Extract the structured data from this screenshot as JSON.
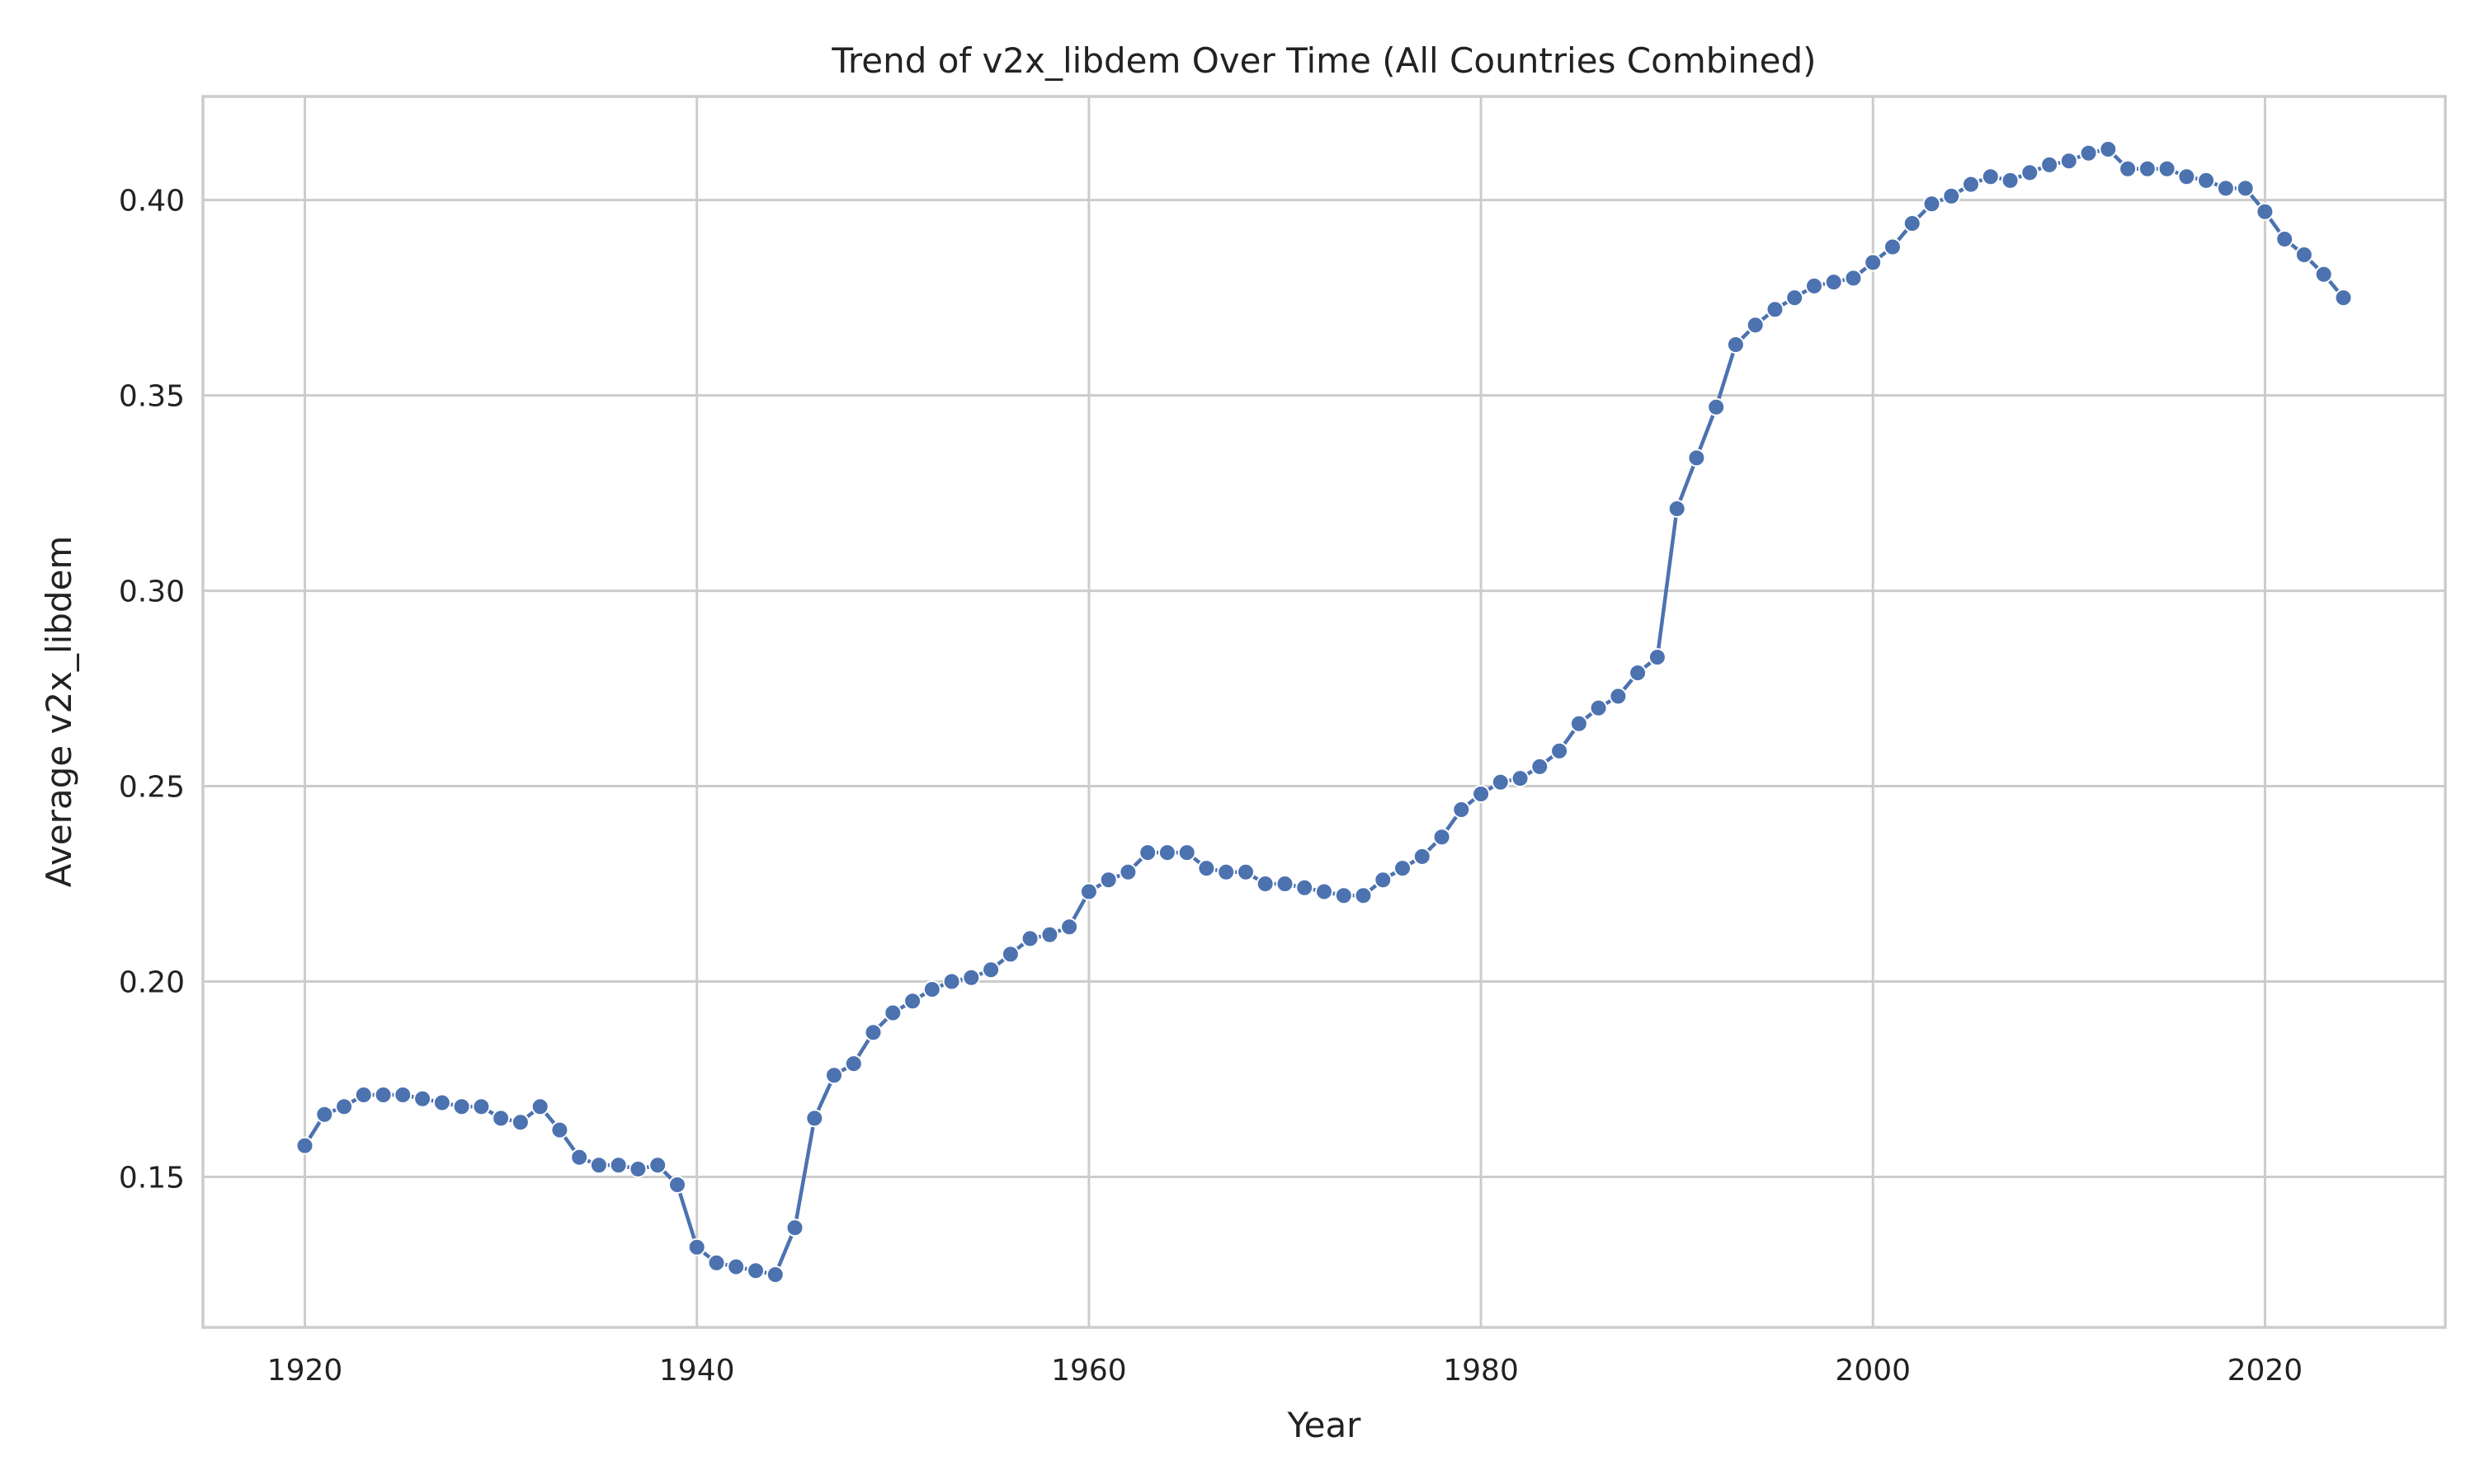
{
  "chart_data": {
    "type": "line",
    "title": "Trend of v2x_libdem Over Time (All Countries Combined)",
    "xlabel": "Year",
    "ylabel": "Average v2x_libdem",
    "xlim": [
      1914.8,
      2029.2
    ],
    "ylim": [
      0.1115,
      0.4265
    ],
    "xticks": [
      1920,
      1940,
      1960,
      1980,
      2000,
      2020
    ],
    "yticks": [
      0.15,
      0.2,
      0.25,
      0.3,
      0.35,
      0.4
    ],
    "xtick_labels": [
      "1920",
      "1940",
      "1960",
      "1980",
      "2000",
      "2020"
    ],
    "ytick_labels": [
      "0.15",
      "0.20",
      "0.25",
      "0.30",
      "0.35",
      "0.40"
    ],
    "grid": true,
    "marker": "circle",
    "color": "#4c72b0",
    "x": [
      1920,
      1921,
      1922,
      1923,
      1924,
      1925,
      1926,
      1927,
      1928,
      1929,
      1930,
      1931,
      1932,
      1933,
      1934,
      1935,
      1936,
      1937,
      1938,
      1939,
      1940,
      1941,
      1942,
      1943,
      1944,
      1945,
      1946,
      1947,
      1948,
      1949,
      1950,
      1951,
      1952,
      1953,
      1954,
      1955,
      1956,
      1957,
      1958,
      1959,
      1960,
      1961,
      1962,
      1963,
      1964,
      1965,
      1966,
      1967,
      1968,
      1969,
      1970,
      1971,
      1972,
      1973,
      1974,
      1975,
      1976,
      1977,
      1978,
      1979,
      1980,
      1981,
      1982,
      1983,
      1984,
      1985,
      1986,
      1987,
      1988,
      1989,
      1990,
      1991,
      1992,
      1993,
      1994,
      1995,
      1996,
      1997,
      1998,
      1999,
      2000,
      2001,
      2002,
      2003,
      2004,
      2005,
      2006,
      2007,
      2008,
      2009,
      2010,
      2011,
      2012,
      2013,
      2014,
      2015,
      2016,
      2017,
      2018,
      2019,
      2020,
      2021,
      2022,
      2023,
      2024
    ],
    "y": [
      0.158,
      0.166,
      0.168,
      0.171,
      0.171,
      0.171,
      0.17,
      0.169,
      0.168,
      0.168,
      0.165,
      0.164,
      0.168,
      0.162,
      0.155,
      0.153,
      0.153,
      0.152,
      0.153,
      0.148,
      0.132,
      0.128,
      0.127,
      0.126,
      0.125,
      0.137,
      0.165,
      0.176,
      0.179,
      0.187,
      0.192,
      0.195,
      0.198,
      0.2,
      0.201,
      0.203,
      0.207,
      0.211,
      0.212,
      0.214,
      0.223,
      0.226,
      0.228,
      0.233,
      0.233,
      0.233,
      0.229,
      0.228,
      0.228,
      0.225,
      0.225,
      0.224,
      0.223,
      0.222,
      0.222,
      0.226,
      0.229,
      0.232,
      0.237,
      0.244,
      0.248,
      0.251,
      0.252,
      0.255,
      0.259,
      0.266,
      0.27,
      0.273,
      0.279,
      0.283,
      0.321,
      0.334,
      0.347,
      0.363,
      0.368,
      0.372,
      0.375,
      0.378,
      0.379,
      0.38,
      0.384,
      0.388,
      0.394,
      0.399,
      0.401,
      0.404,
      0.406,
      0.405,
      0.407,
      0.409,
      0.41,
      0.412,
      0.413,
      0.408,
      0.408,
      0.408,
      0.406,
      0.405,
      0.403,
      0.403,
      0.397,
      0.39,
      0.386,
      0.381,
      0.375
    ]
  }
}
